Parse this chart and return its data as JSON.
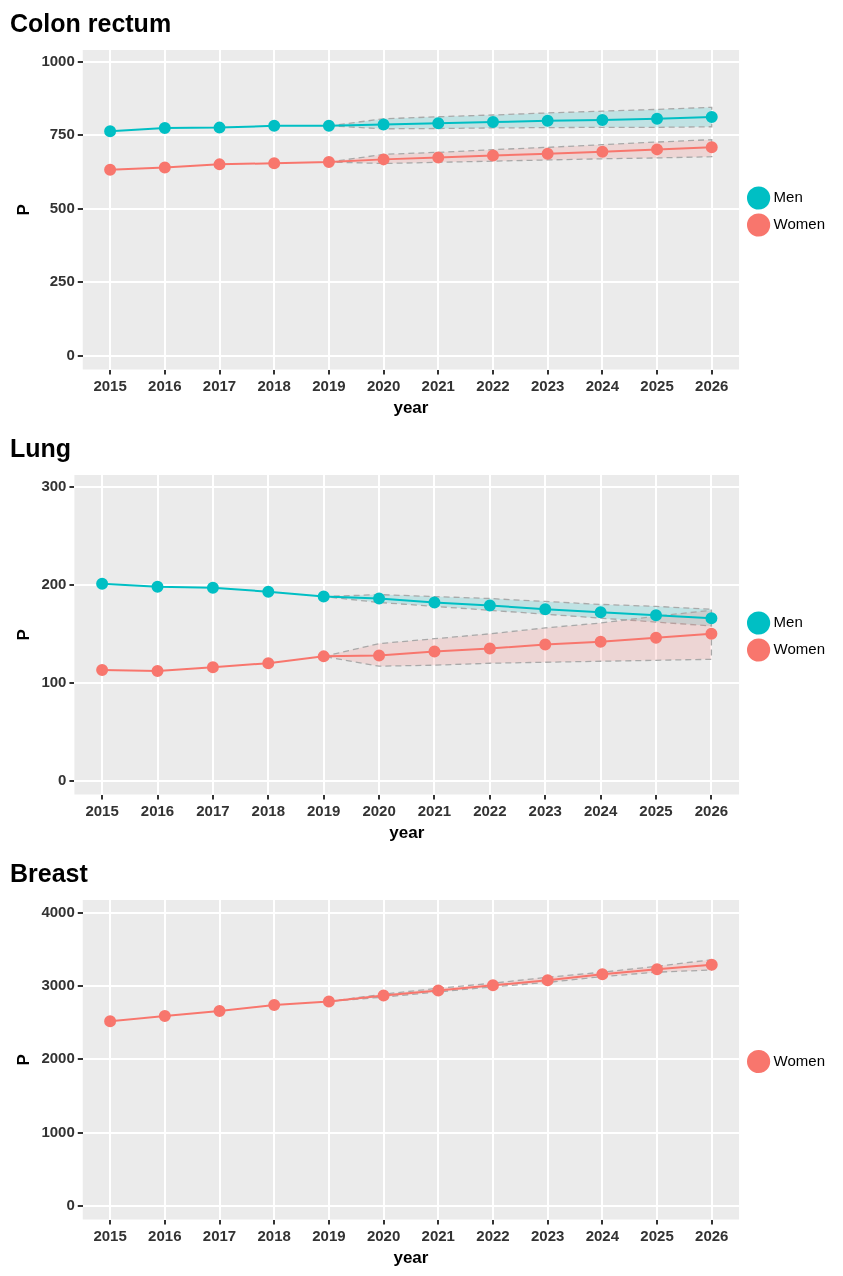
{
  "chart_data": [
    {
      "type": "line",
      "title": "Colon rectum",
      "xlabel": "year",
      "ylabel": "P",
      "categories": [
        "2015",
        "2016",
        "2017",
        "2018",
        "2019",
        "2020",
        "2021",
        "2022",
        "2023",
        "2024",
        "2025",
        "2026"
      ],
      "ylim": [
        -47,
        1040
      ],
      "yticks": [
        0,
        250,
        500,
        750,
        1000
      ],
      "grid": true,
      "legend": "right",
      "marker": "circle",
      "series": [
        {
          "name": "Men",
          "color": "#00bfc4",
          "values": [
            764,
            775,
            776,
            782,
            782,
            787,
            791,
            795,
            799,
            802,
            806,
            812
          ],
          "lower": [
            null,
            null,
            null,
            null,
            782,
            772,
            773,
            775,
            776,
            777,
            777,
            779
          ],
          "upper": [
            null,
            null,
            null,
            null,
            782,
            806,
            813,
            819,
            826,
            832,
            838,
            845
          ]
        },
        {
          "name": "Women",
          "color": "#f8766d",
          "values": [
            633,
            640,
            651,
            655,
            659,
            668,
            674,
            681,
            687,
            694,
            702,
            709
          ],
          "lower": [
            null,
            null,
            null,
            null,
            659,
            654,
            658,
            662,
            666,
            670,
            673,
            677
          ],
          "upper": [
            null,
            null,
            null,
            null,
            659,
            685,
            692,
            701,
            709,
            718,
            727,
            735
          ]
        }
      ]
    },
    {
      "type": "line",
      "title": "Lung",
      "xlabel": "year",
      "ylabel": "P",
      "categories": [
        "2015",
        "2016",
        "2017",
        "2018",
        "2019",
        "2020",
        "2021",
        "2022",
        "2023",
        "2024",
        "2025",
        "2026"
      ],
      "ylim": [
        -14,
        312
      ],
      "yticks": [
        0,
        100,
        200,
        300
      ],
      "grid": true,
      "legend": "right",
      "marker": "circle",
      "series": [
        {
          "name": "Men",
          "color": "#00bfc4",
          "values": [
            201,
            198,
            197,
            193,
            188,
            186,
            182,
            179,
            175,
            172,
            169,
            166
          ],
          "lower": [
            null,
            null,
            null,
            null,
            188,
            182,
            178,
            174,
            170,
            166,
            162,
            158
          ],
          "upper": [
            null,
            null,
            null,
            null,
            188,
            190,
            188,
            186,
            183,
            180,
            178,
            175
          ]
        },
        {
          "name": "Women",
          "color": "#f8766d",
          "values": [
            113,
            112,
            116,
            120,
            127,
            128,
            132,
            135,
            139,
            142,
            146,
            150
          ],
          "lower": [
            null,
            null,
            null,
            null,
            127,
            117,
            118,
            120,
            121,
            122,
            123,
            124
          ],
          "upper": [
            null,
            null,
            null,
            null,
            127,
            140,
            145,
            150,
            156,
            161,
            168,
            174
          ]
        }
      ]
    },
    {
      "type": "line",
      "title": "Breast",
      "xlabel": "year",
      "ylabel": "P",
      "categories": [
        "2015",
        "2016",
        "2017",
        "2018",
        "2019",
        "2020",
        "2021",
        "2022",
        "2023",
        "2024",
        "2025",
        "2026"
      ],
      "ylim": [
        -188,
        4175
      ],
      "yticks": [
        0,
        1000,
        2000,
        3000,
        4000
      ],
      "grid": true,
      "legend": "right",
      "marker": "circle",
      "series": [
        {
          "name": "Women",
          "color": "#f8766d",
          "values": [
            2520,
            2590,
            2660,
            2740,
            2790,
            2870,
            2940,
            3010,
            3080,
            3160,
            3230,
            3290
          ],
          "lower": [
            null,
            null,
            null,
            null,
            2790,
            2850,
            2920,
            2990,
            3050,
            3130,
            3190,
            3220
          ],
          "upper": [
            null,
            null,
            null,
            null,
            2790,
            2890,
            2970,
            3040,
            3120,
            3190,
            3270,
            3360
          ]
        }
      ]
    }
  ]
}
